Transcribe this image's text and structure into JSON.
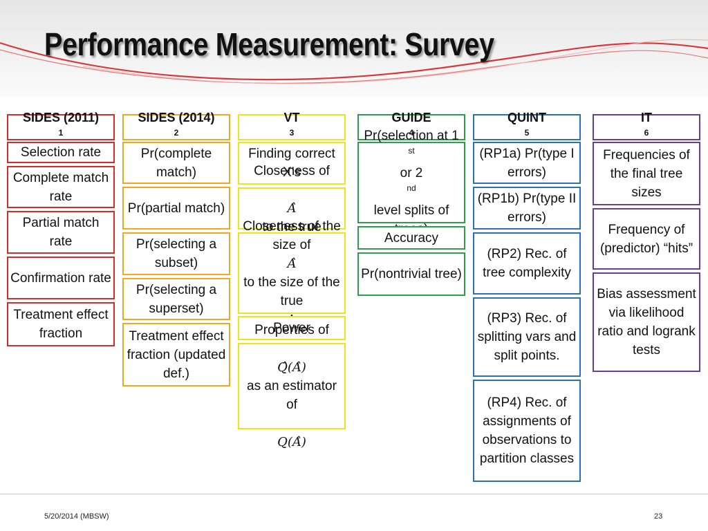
{
  "slide": {
    "title": "Performance Measurement: Survey",
    "footer_left": "5/20/2014 (MBSW)",
    "page_number": "23"
  },
  "colors": {
    "sides2011": "#d62b27",
    "sides2014": "#f4a61f",
    "vt": "#ece519",
    "guide": "#2f9e4a",
    "quint": "#2a70b5",
    "it": "#6a3b97"
  },
  "columns": [
    {
      "header": "SIDES (2011)",
      "sup": "1",
      "items": [
        "Selection rate",
        "Complete match rate",
        "Partial match rate",
        "Confirmation rate",
        "Treatment effect fraction"
      ]
    },
    {
      "header": "SIDES (2014)",
      "sup": "2",
      "items": [
        "Pr(complete match)",
        "Pr(partial match)",
        "Pr(selecting a subset)",
        "Pr(selecting a superset)",
        "Treatment effect fraction (updated def.)"
      ]
    },
    {
      "header": "VT",
      "sup": "3",
      "items": {
        "finding": "Finding correct X’s",
        "closeness1_a": "Closeness of",
        "closeness1_b": "to the true",
        "closeness2_a": "Closeness of the size of",
        "closeness2_b": "to the size of the true",
        "power": "Power",
        "properties_a": "Properties of",
        "properties_b": "as an estimator of",
        "sym_ahat": "𝐴̂",
        "sym_a": "A",
        "sym_qhat_ahat": "𝑄̂(𝐴̂)",
        "sym_q_ahat": "𝑄(𝐴̂)"
      }
    },
    {
      "header": "GUIDE",
      "sup": "4",
      "items": {
        "sel_a": "Pr(selection at 1",
        "sel_st": "st",
        "sel_b": " or 2",
        "sel_nd": "nd",
        "sel_c": " level splits of trees)",
        "accuracy": "Accuracy",
        "nontrivial": "Pr(nontrivial tree)"
      }
    },
    {
      "header": "QUINT",
      "sup": "5",
      "items": [
        "(RP1a) Pr(type I errors)",
        "(RP1b) Pr(type II errors)",
        "(RP2) Rec. of tree complexity",
        "(RP3) Rec. of splitting vars and split points.",
        "(RP4) Rec. of assignments of observations to partition classes"
      ]
    },
    {
      "header": "IT",
      "sup": "6",
      "items": [
        "Frequencies of the final tree sizes",
        "Frequency of (predictor) “hits”",
        "Bias assessment via likelihood ratio and logrank tests"
      ]
    }
  ]
}
